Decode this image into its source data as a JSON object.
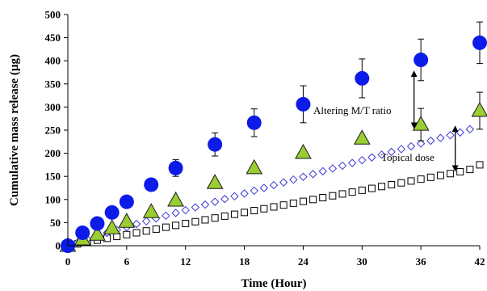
{
  "chart_data": {
    "type": "scatter",
    "xlabel": "Time (Hour)",
    "ylabel": "Cumulative mass release (µg)",
    "xlim": [
      0,
      42
    ],
    "ylim": [
      0,
      500
    ],
    "x_ticks": [
      0,
      6,
      12,
      18,
      24,
      30,
      36,
      42
    ],
    "y_ticks": [
      0,
      50,
      100,
      150,
      200,
      250,
      300,
      350,
      400,
      450,
      500
    ],
    "grid": false,
    "legend": "none",
    "series": [
      {
        "marker": "circle",
        "color": "#0d1be8",
        "x": [
          0,
          1.5,
          3,
          4.5,
          6,
          8.5,
          11,
          15,
          19,
          24,
          30,
          36,
          42
        ],
        "y": [
          0,
          28,
          48,
          72,
          95,
          132,
          168,
          219,
          266,
          306,
          362,
          402,
          439
        ],
        "error": [
          0,
          0,
          0,
          0,
          0,
          0,
          18,
          25,
          30,
          40,
          42,
          45,
          45
        ]
      },
      {
        "marker": "triangle",
        "color": "#9acd32",
        "x": [
          0,
          1.5,
          3,
          4.5,
          6,
          8.5,
          11,
          15,
          19,
          24,
          30,
          36,
          42
        ],
        "y": [
          0,
          14,
          24,
          38,
          52,
          73,
          98,
          136,
          168,
          201,
          232,
          262,
          292
        ],
        "error": [
          0,
          0,
          0,
          0,
          0,
          0,
          0,
          0,
          0,
          0,
          0,
          35,
          40
        ]
      },
      {
        "marker": "diamond",
        "color": "#3a3ad0",
        "x": [
          0,
          1,
          2,
          3,
          4,
          5,
          6,
          7,
          8,
          9,
          10,
          11,
          12,
          13,
          14,
          15,
          16,
          17,
          18,
          19,
          20,
          21,
          22,
          23,
          24,
          25,
          26,
          27,
          28,
          29,
          30,
          31,
          32,
          33,
          34,
          35,
          36,
          37,
          38,
          39,
          40,
          41,
          42
        ],
        "y": [
          0,
          7,
          14,
          21,
          28,
          34,
          40,
          47,
          53,
          59,
          65,
          71,
          77,
          83,
          89,
          95,
          101,
          107,
          113,
          119,
          125,
          131,
          137,
          143,
          149,
          155,
          161,
          167,
          173,
          179,
          185,
          191,
          197,
          203,
          209,
          215,
          221,
          227,
          233,
          239,
          245,
          252,
          290
        ]
      },
      {
        "marker": "square",
        "color": "#000000",
        "x": [
          0,
          1,
          2,
          3,
          4,
          5,
          6,
          7,
          8,
          9,
          10,
          11,
          12,
          13,
          14,
          15,
          16,
          17,
          18,
          19,
          20,
          21,
          22,
          23,
          24,
          25,
          26,
          27,
          28,
          29,
          30,
          31,
          32,
          33,
          34,
          35,
          36,
          37,
          38,
          39,
          40,
          41,
          42
        ],
        "y": [
          0,
          4,
          8,
          12,
          16,
          20,
          24,
          28,
          32,
          36,
          40,
          44,
          48,
          52,
          56,
          60,
          64,
          68,
          72,
          76,
          80,
          84,
          88,
          92,
          96,
          100,
          104,
          108,
          112,
          116,
          120,
          124,
          128,
          132,
          136,
          140,
          144,
          148,
          152,
          156,
          160,
          165,
          175
        ]
      }
    ],
    "annotations": [
      {
        "text": "Altering M/T ratio",
        "arrow": {
          "x": 35.3,
          "y1": 372,
          "y2": 260
        }
      },
      {
        "text": "Topical dose",
        "arrow": {
          "x": 39.5,
          "y1": 253,
          "y2": 167
        }
      }
    ]
  }
}
